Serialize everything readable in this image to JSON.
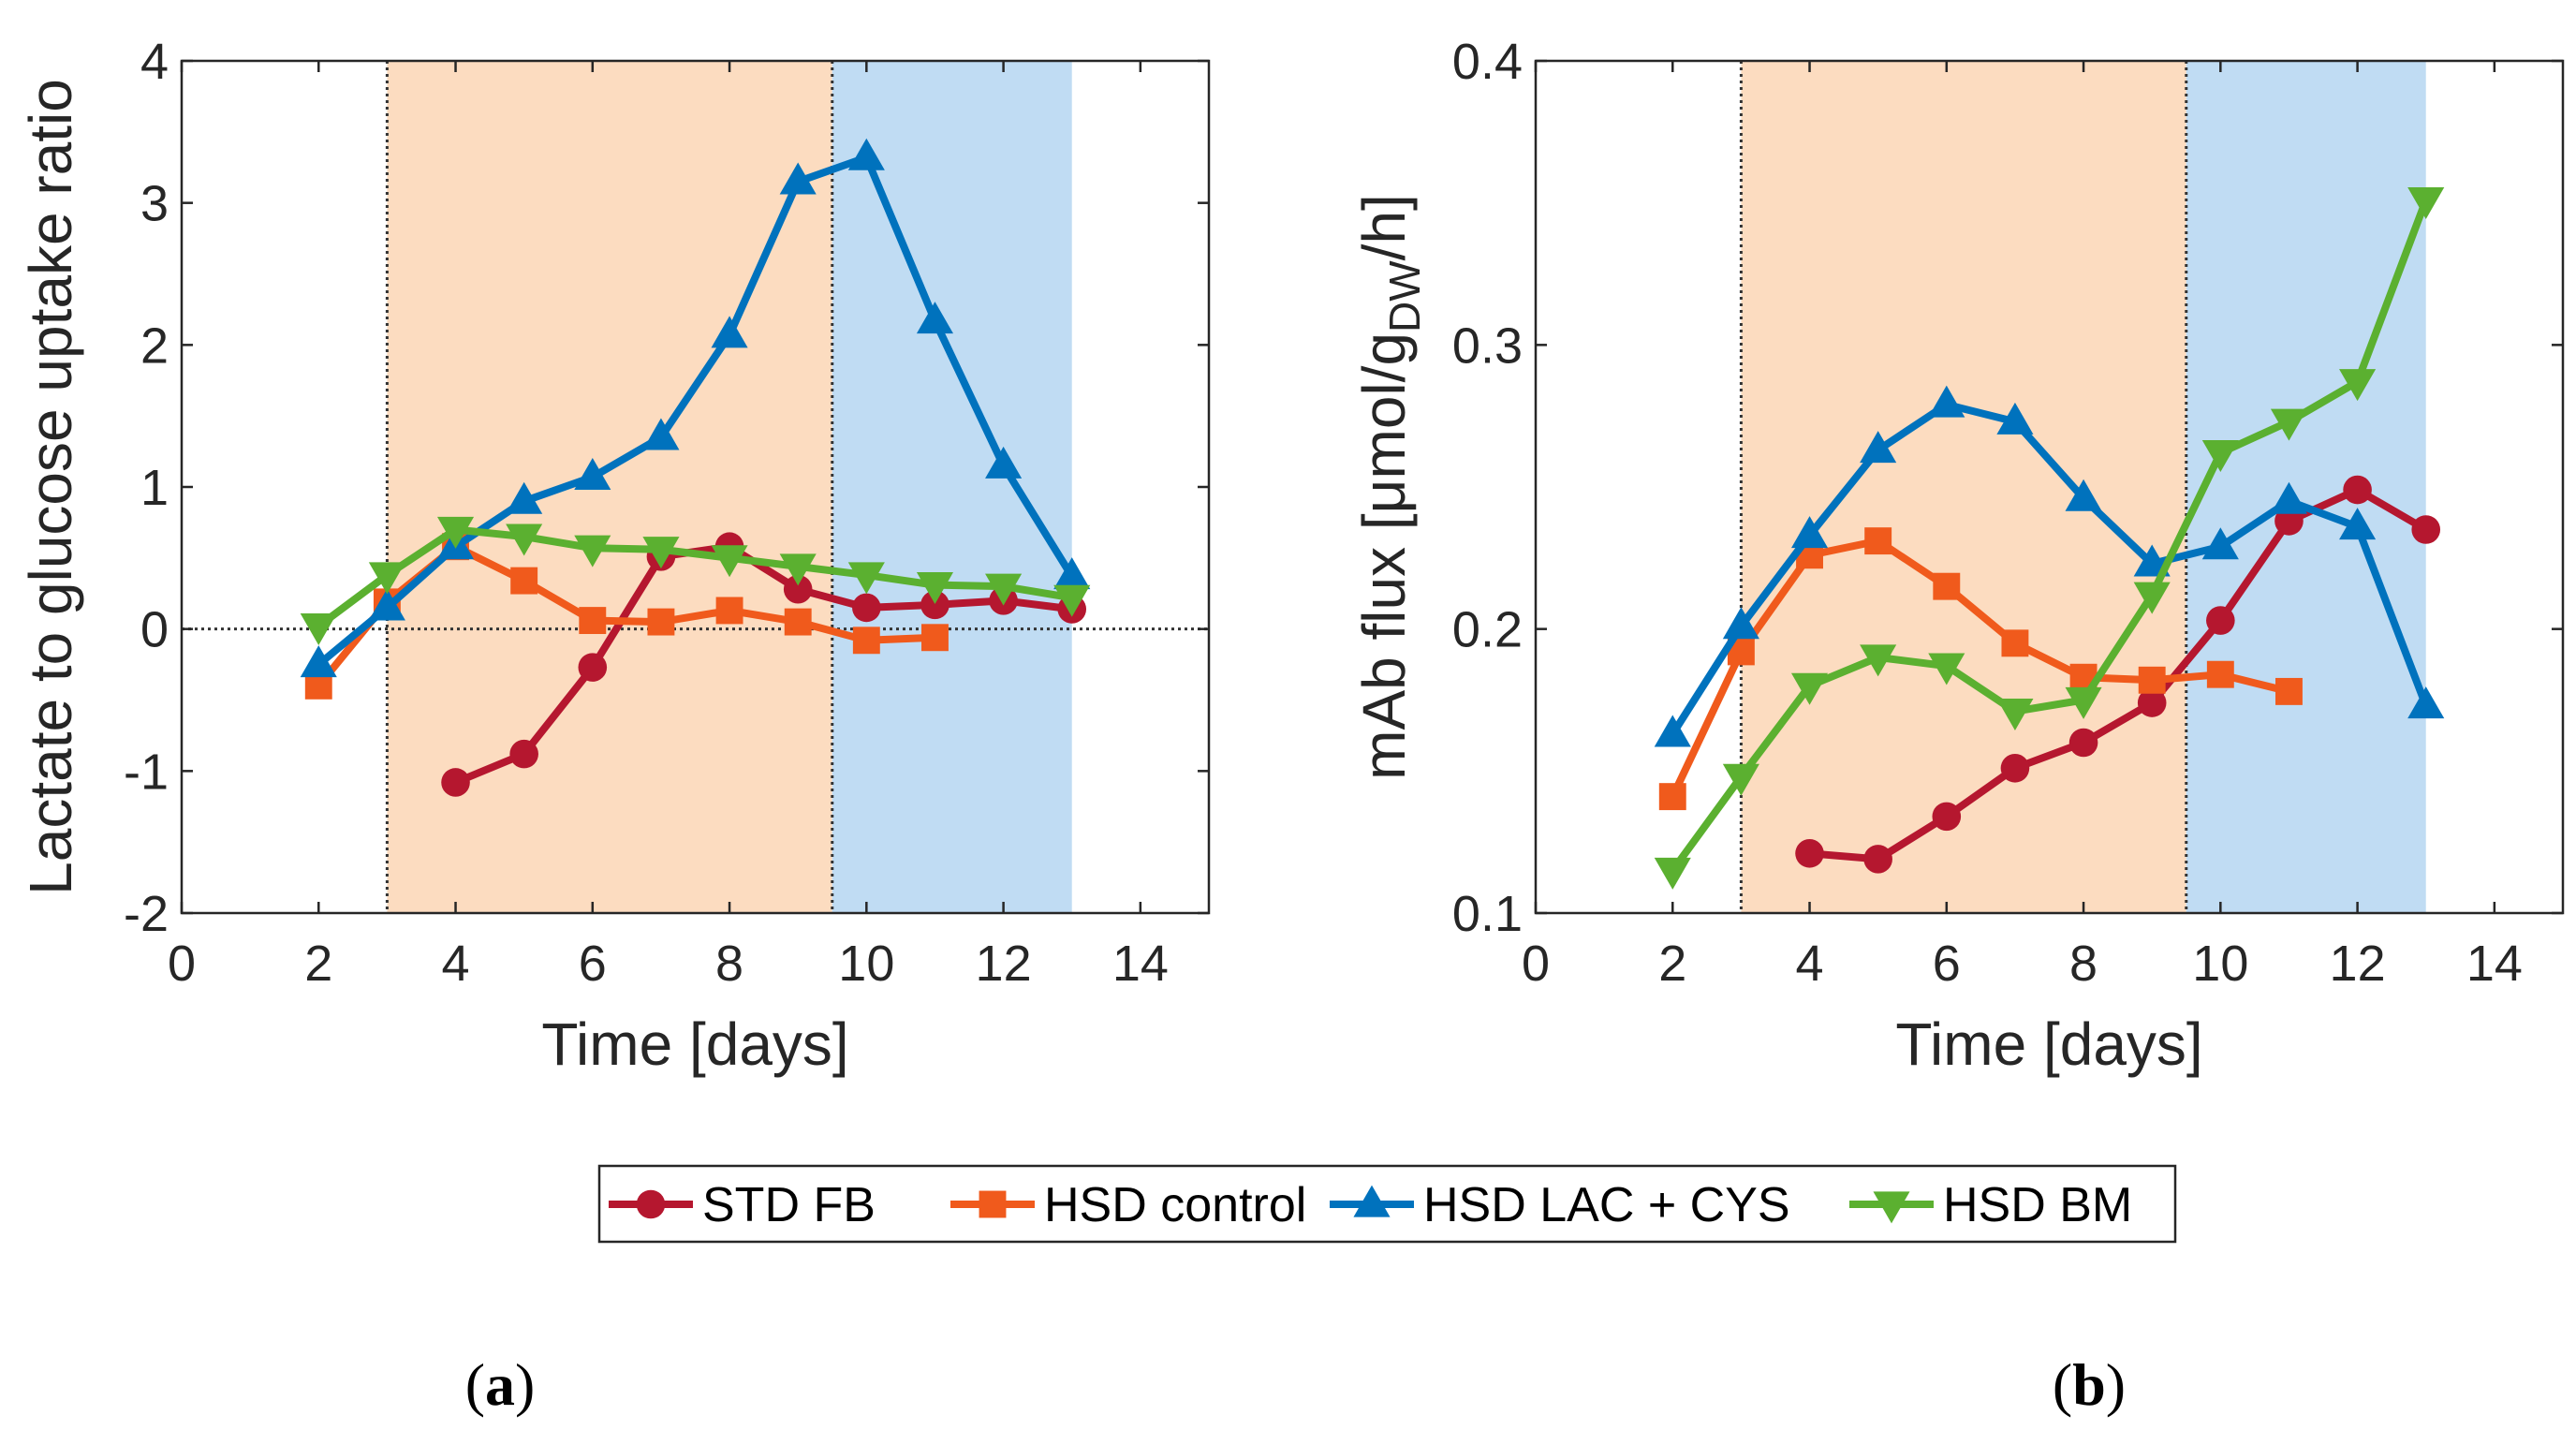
{
  "chart_data": [
    {
      "type": "line",
      "panel_label": "a",
      "xlabel": "Time [days]",
      "ylabel": "Lactate to glucose uptake ratio",
      "xlim": [
        0,
        15
      ],
      "ylim": [
        -2,
        4
      ],
      "xticks": [
        0,
        2,
        4,
        6,
        8,
        10,
        12,
        14
      ],
      "yticks": [
        -2,
        -1,
        0,
        1,
        2,
        3,
        4
      ],
      "zero_line": true,
      "shaded_regions": [
        {
          "from": 3,
          "to": 9.5,
          "color": "#fcdcc0"
        },
        {
          "from": 9.5,
          "to": 13,
          "color": "#c0dcf3"
        }
      ],
      "phase_lines": [
        3,
        9.5
      ],
      "grid": false,
      "series": [
        {
          "name": "STD FB",
          "x": [
            4,
            5,
            6,
            7,
            8,
            9,
            10,
            11,
            12,
            13
          ],
          "y": [
            -1.08,
            -0.88,
            -0.27,
            0.51,
            0.58,
            0.28,
            0.15,
            0.17,
            0.2,
            0.14
          ]
        },
        {
          "name": "HSD control",
          "x": [
            2,
            3,
            4,
            5,
            6,
            7,
            8,
            9,
            10,
            11
          ],
          "y": [
            -0.4,
            0.19,
            0.58,
            0.34,
            0.06,
            0.05,
            0.13,
            0.05,
            -0.08,
            -0.06
          ]
        },
        {
          "name": "HSD LAC + CYS",
          "x": [
            2,
            3,
            4,
            5,
            6,
            7,
            8,
            9,
            10,
            11,
            12,
            13
          ],
          "y": [
            -0.25,
            0.15,
            0.58,
            0.9,
            1.07,
            1.35,
            2.07,
            3.15,
            3.32,
            2.17,
            1.15,
            0.37
          ]
        },
        {
          "name": "HSD BM",
          "x": [
            2,
            3,
            4,
            5,
            6,
            7,
            8,
            9,
            10,
            11,
            12,
            13
          ],
          "y": [
            0.02,
            0.38,
            0.7,
            0.65,
            0.57,
            0.56,
            0.5,
            0.44,
            0.38,
            0.31,
            0.3,
            0.22
          ]
        }
      ]
    },
    {
      "type": "line",
      "panel_label": "b",
      "xlabel": "Time [days]",
      "ylabel_main": "mAb flux [μmol/g",
      "ylabel_sub": "DW",
      "ylabel_end": "/h]",
      "xlim": [
        0,
        15
      ],
      "ylim": [
        0.1,
        0.4
      ],
      "xticks": [
        0,
        2,
        4,
        6,
        8,
        10,
        12,
        14
      ],
      "yticks": [
        0.1,
        0.2,
        0.3,
        0.4
      ],
      "zero_line": false,
      "shaded_regions": [
        {
          "from": 3,
          "to": 9.5,
          "color": "#fcdcc0"
        },
        {
          "from": 9.5,
          "to": 13,
          "color": "#c0dcf3"
        }
      ],
      "phase_lines": [
        3,
        9.5
      ],
      "grid": false,
      "series": [
        {
          "name": "STD FB",
          "x": [
            4,
            5,
            6,
            7,
            8,
            9,
            10,
            11,
            12,
            13
          ],
          "y": [
            0.121,
            0.119,
            0.134,
            0.151,
            0.16,
            0.174,
            0.203,
            0.238,
            0.249,
            0.235
          ]
        },
        {
          "name": "HSD control",
          "x": [
            2,
            3,
            4,
            5,
            6,
            7,
            8,
            9,
            10,
            11
          ],
          "y": [
            0.141,
            0.192,
            0.226,
            0.231,
            0.215,
            0.195,
            0.183,
            0.182,
            0.184,
            0.178
          ]
        },
        {
          "name": "HSD LAC + CYS",
          "x": [
            2,
            3,
            4,
            5,
            6,
            7,
            8,
            9,
            10,
            11,
            12,
            13
          ],
          "y": [
            0.163,
            0.201,
            0.233,
            0.263,
            0.279,
            0.273,
            0.246,
            0.223,
            0.229,
            0.245,
            0.236,
            0.173
          ]
        },
        {
          "name": "HSD BM",
          "x": [
            2,
            3,
            4,
            5,
            6,
            7,
            8,
            9,
            10,
            11,
            12,
            13
          ],
          "y": [
            0.115,
            0.148,
            0.18,
            0.19,
            0.187,
            0.171,
            0.175,
            0.212,
            0.262,
            0.273,
            0.287,
            0.351
          ]
        }
      ]
    }
  ],
  "legend": {
    "placement": "bottom-center",
    "items": [
      {
        "label": "STD FB",
        "color": "#b5172f",
        "marker": "circle"
      },
      {
        "label": "HSD control",
        "color": "#f05a1c",
        "marker": "square"
      },
      {
        "label": "HSD LAC + CYS",
        "color": "#0072bd",
        "marker": "triangle-up"
      },
      {
        "label": "HSD BM",
        "color": "#5bb030",
        "marker": "triangle-down"
      }
    ]
  }
}
